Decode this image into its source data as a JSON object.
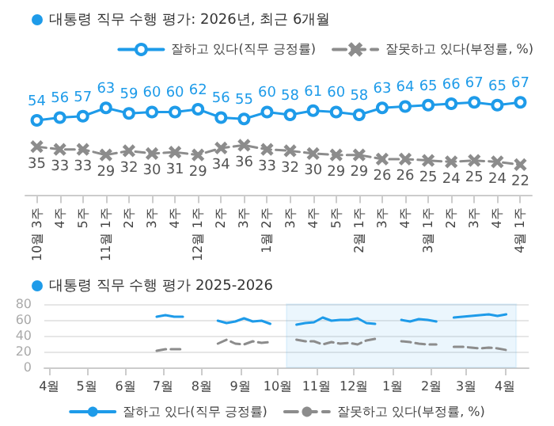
{
  "chart_data": [
    {
      "type": "line",
      "title": "대통령 직무 수행 평가: 2026년, 최근 6개월",
      "categories": [
        "10월 3주",
        "4주",
        "5주",
        "11월 1주",
        "2주",
        "3주",
        "4주",
        "12월 1주",
        "2주",
        "3주",
        "1월 2주",
        "3주",
        "4주",
        "5주",
        "2월 1주",
        "3주",
        "4주",
        "3월 1주",
        "2주",
        "3주",
        "4주",
        "4월 1주"
      ],
      "series": [
        {
          "name": "잘하고 있다(직무 긍정률)",
          "color": "#1e9be9",
          "marker": "circle",
          "line_style": "solid",
          "values": [
            54,
            56,
            57,
            63,
            59,
            60,
            60,
            62,
            56,
            55,
            60,
            58,
            61,
            60,
            58,
            63,
            64,
            65,
            66,
            67,
            65,
            67
          ]
        },
        {
          "name": "잘못하고 있다(부정률, %)",
          "color": "#8c8c8c",
          "marker": "cross",
          "line_style": "dashed",
          "values": [
            35,
            33,
            33,
            29,
            32,
            30,
            31,
            29,
            34,
            36,
            33,
            32,
            30,
            29,
            29,
            26,
            26,
            25,
            24,
            25,
            24,
            22
          ]
        }
      ],
      "tick_labels": "x",
      "data_labels": true,
      "legend": "top right",
      "grid": false
    },
    {
      "type": "line",
      "title": "대통령 직무 수행 평가 2025-2026",
      "x": [
        "2025-06-26",
        "2025-07-03",
        "2025-07-10",
        "2025-07-17",
        "2025-07-31",
        "2025-08-14",
        "2025-08-21",
        "2025-08-28",
        "2025-09-04",
        "2025-09-11",
        "2025-09-18",
        "2025-09-25",
        "2025-10-02",
        "2025-10-16",
        "2025-10-23",
        "2025-10-30",
        "2025-11-06",
        "2025-11-13",
        "2025-11-20",
        "2025-11-27",
        "2025-12-04",
        "2025-12-11",
        "2025-12-18",
        "2025-12-30",
        "2026-01-08",
        "2026-01-15",
        "2026-01-22",
        "2026-01-29",
        "2026-02-05",
        "2026-02-12",
        "2026-02-19",
        "2026-02-26",
        "2026-03-05",
        "2026-03-12",
        "2026-03-19",
        "2026-03-26",
        "2026-04-02"
      ],
      "series": [
        {
          "name": "잘하고 있다(직무 긍정률)",
          "color": "#1e9be9",
          "line_style": "solid",
          "values": [
            64,
            66,
            64,
            64,
            null,
            59,
            56,
            58,
            62,
            58,
            59,
            55,
            null,
            54,
            56,
            57,
            63,
            59,
            60,
            60,
            62,
            56,
            55,
            null,
            60,
            58,
            61,
            60,
            58,
            null,
            63,
            64,
            65,
            66,
            67,
            65,
            67
          ]
        },
        {
          "name": "잘못하고 있다(부정률, %)",
          "color": "#8c8c8c",
          "line_style": "dashed",
          "values": [
            21,
            23,
            23,
            23,
            null,
            30,
            35,
            30,
            29,
            33,
            31,
            32,
            null,
            35,
            33,
            33,
            29,
            32,
            30,
            31,
            29,
            34,
            36,
            null,
            33,
            32,
            30,
            29,
            29,
            null,
            26,
            26,
            25,
            24,
            25,
            24,
            22
          ]
        }
      ],
      "xlim": [
        "2025-03-28",
        "2026-04-20"
      ],
      "xticks": [
        {
          "value": "2025-04-01",
          "label": "4월"
        },
        {
          "value": "2025-05-01",
          "label": "5월"
        },
        {
          "value": "2025-06-01",
          "label": "6월"
        },
        {
          "value": "2025-07-01",
          "label": "7월"
        },
        {
          "value": "2025-08-01",
          "label": "8월"
        },
        {
          "value": "2025-09-01",
          "label": "9월"
        },
        {
          "value": "2025-10-01",
          "label": "10월"
        },
        {
          "value": "2025-11-01",
          "label": "11월"
        },
        {
          "value": "2025-12-01",
          "label": "12월"
        },
        {
          "value": "2026-01-01",
          "label": "1월"
        },
        {
          "value": "2026-02-01",
          "label": "2월"
        },
        {
          "value": "2026-03-01",
          "label": "3월"
        },
        {
          "value": "2026-04-01",
          "label": "4월"
        }
      ],
      "ylim": [
        0,
        80
      ],
      "yticks": [
        0,
        20,
        40,
        60,
        80
      ],
      "grid": "y",
      "legend": "bottom",
      "marker": "none",
      "bands": [
        {
          "axis": "x",
          "from": "2025-10-08",
          "to": "2026-04-10",
          "color": "#5bb5f0"
        }
      ]
    }
  ]
}
